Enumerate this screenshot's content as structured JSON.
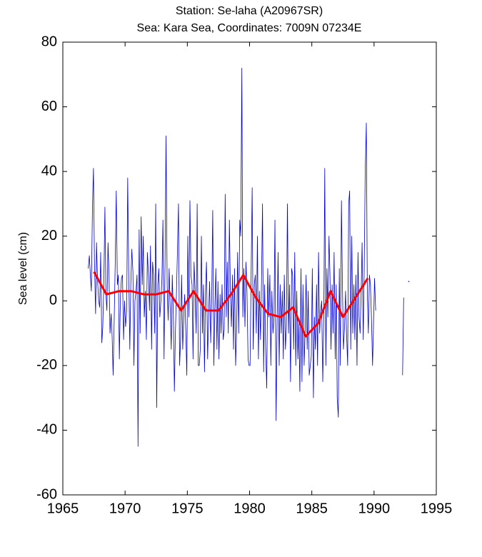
{
  "chart_data": {
    "type": "line",
    "title": "Station: Se-laha (A20967SR)",
    "subtitle": "Sea: Kara Sea, Coordinates: 7009N 07234E",
    "ylabel": "Sea level (cm)",
    "xlim": [
      1965,
      1995
    ],
    "xticks": [
      1965,
      1970,
      1975,
      1980,
      1985,
      1990,
      1995
    ],
    "ylim": [
      -60,
      80
    ],
    "yticks": [
      -60,
      -40,
      -20,
      0,
      20,
      40,
      60,
      80
    ],
    "grid": false,
    "series": [
      {
        "color": "#0000cc",
        "width": 0.8,
        "x": [
          1967.04,
          1967.13,
          1967.21,
          1967.29,
          1967.38,
          1967.46,
          1967.54,
          1967.63,
          1967.71,
          1967.79,
          1967.88,
          1967.96,
          1968.04,
          1968.13,
          1968.21,
          1968.29,
          1968.38,
          1968.46,
          1968.54,
          1968.63,
          1968.71,
          1968.79,
          1968.88,
          1968.96,
          1969.04,
          1969.13,
          1969.21,
          1969.29,
          1969.38,
          1969.46,
          1969.54,
          1969.63,
          1969.71,
          1969.79,
          1969.88,
          1969.96,
          1970.04,
          1970.13,
          1970.21,
          1970.29,
          1970.38,
          1970.46,
          1970.54,
          1970.63,
          1970.71,
          1970.79,
          1970.88,
          1970.96,
          1971.04,
          1971.13,
          1971.21,
          1971.29,
          1971.38,
          1971.46,
          1971.54,
          1971.63,
          1971.71,
          1971.79,
          1971.88,
          1971.96,
          1972.04,
          1972.13,
          1972.21,
          1972.29,
          1972.38,
          1972.46,
          1972.54,
          1972.63,
          1972.71,
          1972.79,
          1972.88,
          1972.96,
          1973.04,
          1973.13,
          1973.21,
          1973.29,
          1973.38,
          1973.46,
          1973.54,
          1973.63,
          1973.71,
          1973.79,
          1973.88,
          1973.96,
          1974.04,
          1974.13,
          1974.21,
          1974.29,
          1974.38,
          1974.46,
          1974.54,
          1974.63,
          1974.71,
          1974.79,
          1974.88,
          1974.96,
          1975.04,
          1975.13,
          1975.21,
          1975.29,
          1975.38,
          1975.46,
          1975.54,
          1975.63,
          1975.71,
          1975.79,
          1975.88,
          1975.96,
          1976.04,
          1976.13,
          1976.21,
          1976.29,
          1976.38,
          1976.46,
          1976.54,
          1976.63,
          1976.71,
          1976.79,
          1976.88,
          1976.96,
          1977.04,
          1977.13,
          1977.21,
          1977.29,
          1977.38,
          1977.46,
          1977.54,
          1977.63,
          1977.71,
          1977.79,
          1977.88,
          1977.96,
          1978.04,
          1978.13,
          1978.21,
          1978.29,
          1978.38,
          1978.46,
          1978.54,
          1978.63,
          1978.71,
          1978.79,
          1978.88,
          1978.96,
          1979.04,
          1979.13,
          1979.21,
          1979.29,
          1979.38,
          1979.46,
          1979.54,
          1979.63,
          1979.71,
          1979.79,
          1979.88,
          1979.96,
          1980.04,
          1980.13,
          1980.21,
          1980.29,
          1980.38,
          1980.46,
          1980.54,
          1980.63,
          1980.71,
          1980.79,
          1980.88,
          1980.96,
          1981.04,
          1981.13,
          1981.21,
          1981.29,
          1981.38,
          1981.46,
          1981.54,
          1981.63,
          1981.71,
          1981.79,
          1981.88,
          1981.96,
          1982.04,
          1982.13,
          1982.21,
          1982.29,
          1982.38,
          1982.46,
          1982.54,
          1982.63,
          1982.71,
          1982.79,
          1982.88,
          1982.96,
          1983.04,
          1983.13,
          1983.21,
          1983.29,
          1983.38,
          1983.46,
          1983.54,
          1983.63,
          1983.71,
          1983.79,
          1983.88,
          1983.96,
          1984.04,
          1984.13,
          1984.21,
          1984.29,
          1984.38,
          1984.46,
          1984.54,
          1984.63,
          1984.71,
          1984.79,
          1984.88,
          1984.96,
          1985.04,
          1985.13,
          1985.21,
          1985.29,
          1985.38,
          1985.46,
          1985.54,
          1985.63,
          1985.71,
          1985.79,
          1985.88,
          1985.96,
          1986.04,
          1986.13,
          1986.21,
          1986.29,
          1986.38,
          1986.46,
          1986.54,
          1986.63,
          1986.71,
          1986.79,
          1986.88,
          1986.96,
          1987.04,
          1987.13,
          1987.21,
          1987.29,
          1987.38,
          1987.46,
          1987.54,
          1987.63,
          1987.71,
          1987.79,
          1987.88,
          1987.96,
          1988.04,
          1988.13,
          1988.21,
          1988.29,
          1988.38,
          1988.46,
          1988.54,
          1988.63,
          1988.71,
          1988.79,
          1988.88,
          1988.96,
          1989.04,
          1989.13,
          1989.21,
          1989.29,
          1989.38,
          1989.46,
          1989.54,
          1989.63,
          1989.71,
          1989.79,
          1989.88,
          1989.96,
          1990.04,
          1990.13,
          1991,
          1992.29,
          1992.38,
          1992.6,
          1992.79
        ],
        "values": [
          10,
          14,
          8,
          3,
          29,
          41,
          12,
          -4,
          18,
          6,
          0,
          -2,
          15,
          -13,
          -8,
          5,
          29,
          2,
          -3,
          18,
          8,
          -10,
          -4,
          -11,
          -23,
          -5,
          12,
          34,
          5,
          8,
          -18,
          2,
          7,
          8,
          -12,
          0,
          -8,
          -3,
          38,
          10,
          -15,
          5,
          16,
          9,
          -20,
          0,
          3,
          8,
          -45,
          22,
          -10,
          26,
          5,
          20,
          -5,
          3,
          -12,
          15,
          8,
          -3,
          17,
          -15,
          12,
          8,
          -10,
          30,
          -33,
          5,
          10,
          -5,
          0,
          7,
          25,
          -18,
          12,
          51,
          5,
          -6,
          10,
          -3,
          -15,
          8,
          -5,
          -28,
          -10,
          3,
          16,
          30,
          -20,
          -12,
          8,
          -15,
          -5,
          2,
          -10,
          -23,
          20,
          -5,
          31,
          8,
          5,
          -18,
          12,
          3,
          -10,
          30,
          -20,
          -20,
          -15,
          20,
          -10,
          5,
          -22,
          3,
          12,
          -18,
          -5,
          6,
          -13,
          1,
          28,
          -20,
          -3,
          10,
          -15,
          6,
          -18,
          2,
          -10,
          5,
          -12,
          -9,
          33,
          -5,
          12,
          -10,
          25,
          3,
          -8,
          8,
          -15,
          10,
          -20,
          -9,
          15,
          -10,
          25,
          20,
          72,
          -5,
          10,
          -8,
          12,
          3,
          -18,
          -20,
          -20,
          10,
          35,
          -15,
          5,
          8,
          -10,
          20,
          -18,
          3,
          -12,
          6,
          30,
          -22,
          5,
          -15,
          -27,
          10,
          -5,
          8,
          -20,
          3,
          -10,
          -5,
          25,
          -37,
          -8,
          15,
          -20,
          5,
          -10,
          3,
          -18,
          8,
          -15,
          -8,
          30,
          -10,
          5,
          -25,
          10,
          8,
          -15,
          15,
          -20,
          3,
          -18,
          -7,
          -28,
          10,
          -25,
          5,
          -20,
          -10,
          8,
          -15,
          3,
          -23,
          -20,
          -17,
          10,
          -30,
          -5,
          -15,
          5,
          -20,
          15,
          -10,
          -3,
          0,
          -25,
          -6,
          41,
          -20,
          10,
          -5,
          20,
          8,
          -15,
          5,
          -10,
          15,
          -18,
          5,
          -30,
          -36,
          10,
          -20,
          31,
          5,
          -15,
          -8,
          3,
          -10,
          -20,
          30,
          34,
          -15,
          20,
          -10,
          5,
          -12,
          8,
          -20,
          15,
          -5,
          -10,
          2,
          18,
          -12,
          10,
          40,
          55,
          2,
          -10,
          8,
          5,
          -5,
          -20,
          -7,
          7,
          -3,
          null,
          -23,
          1,
          null,
          6
        ]
      },
      {
        "color": "#ff0000",
        "width": 3,
        "x": [
          1967.5,
          1968.5,
          1969.5,
          1970.5,
          1971.5,
          1972.5,
          1973.5,
          1974.5,
          1975.5,
          1976.5,
          1977.5,
          1978.5,
          1979.5,
          1980.5,
          1981.5,
          1982.5,
          1983.5,
          1984.5,
          1985.5,
          1986.5,
          1987.5,
          1988.5,
          1989.5
        ],
        "values": [
          9,
          2,
          3,
          3,
          2,
          2,
          3,
          -3,
          3,
          -3,
          -3,
          2,
          8,
          1,
          -4,
          -5,
          -2,
          -11,
          -7,
          3,
          -5,
          1,
          7
        ]
      }
    ]
  }
}
